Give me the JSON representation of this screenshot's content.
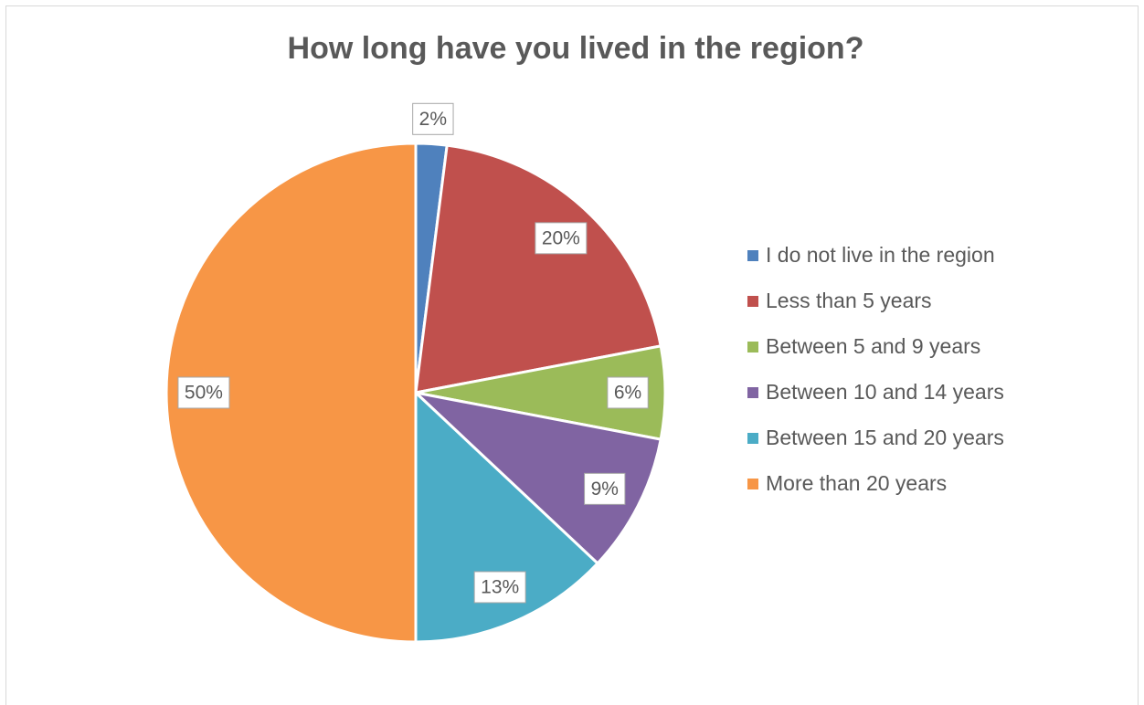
{
  "chart_data": {
    "type": "pie",
    "title": "How long have you lived in the region?",
    "categories": [
      "I do not live in the region",
      "Less than 5 years",
      "Between 5 and 9 years",
      "Between 10 and 14 years",
      "Between 15 and 20 years",
      "More than 20 years"
    ],
    "values": [
      2,
      20,
      6,
      9,
      13,
      50
    ],
    "value_labels": [
      "2%",
      "20%",
      "6%",
      "9%",
      "13%",
      "50%"
    ],
    "colors": [
      "#4f81bd",
      "#c0504d",
      "#9bbb59",
      "#8064a2",
      "#4bacc6",
      "#f79646"
    ],
    "legend": "right"
  }
}
